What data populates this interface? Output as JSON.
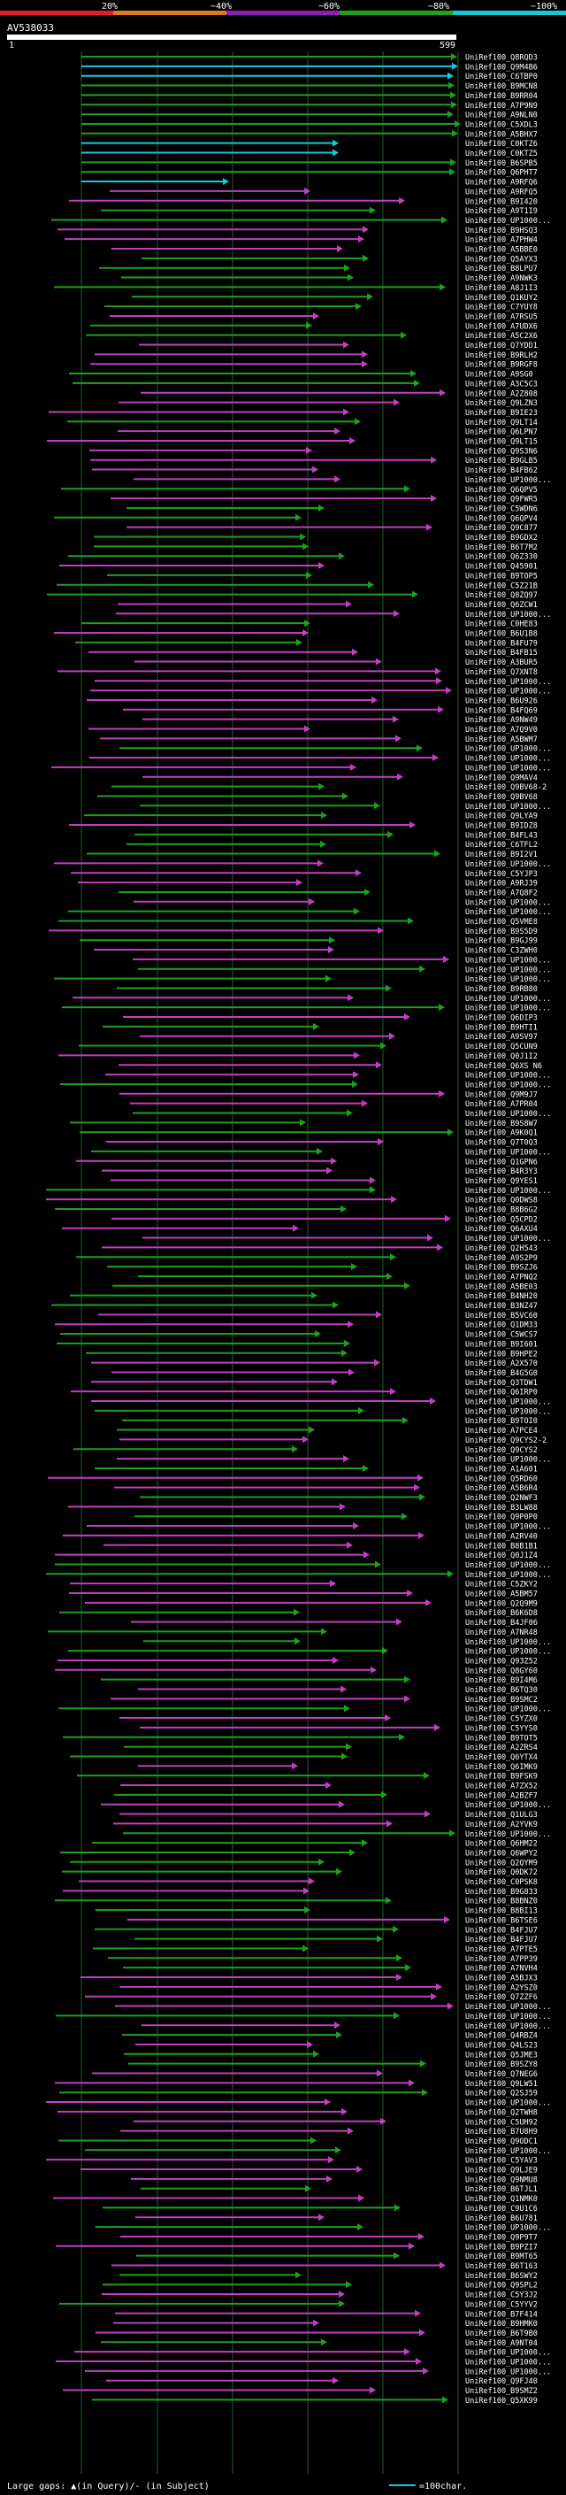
{
  "chart_data": {
    "type": "bar",
    "title": "AV538033",
    "query_start_label": "1",
    "query_end_label": "599",
    "xlim": [
      1,
      599
    ],
    "identity_scale": {
      "labels": [
        "20%",
        "~40%",
        "~60%",
        "~80%",
        "~100%"
      ],
      "colors": [
        "#e0202a",
        "#e07a1f",
        "#8d1fb8",
        "#1ea01e",
        "#19c8d8"
      ]
    },
    "bottom_legend": {
      "gaps_text": "Large gaps: ▲(in Query)/- (in Subject)",
      "scale_text": "=100char."
    },
    "hit_labels": [
      "UniRef100_Q8RQD3",
      "UniRef100_Q9M4B6",
      "UniRef100_C6TBP0",
      "UniRef100_B9MCN8",
      "UniRef100_B9RR04",
      "UniRef100_A7P9N9",
      "UniRef100_A9NLN0",
      "UniRef100_C5XDL3",
      "UniRef100_A5BHX7",
      "UniRef100_C0KTZ6",
      "UniRef100_C0KTZ5",
      "UniRef100_B6SPB5",
      "UniRef100_Q6PHT7",
      "UniRef100_A9RFQ6",
      "UniRef100_A9RFQ5",
      "UniRef100_B9I420",
      "UniRef100_A9T1I9",
      "UniRef100_UP1000...",
      "UniRef100_B9HSQ3",
      "UniRef100_A7PHW4",
      "UniRef100_A5BBE0",
      "UniRef100_Q5AYX3",
      "UniRef100_B8LPU7",
      "UniRef100_A9NWK3",
      "UniRef100_A8J1I3",
      "UniRef100_Q1KUY2",
      "UniRef100_C7YUY8",
      "UniRef100_A7RSU5",
      "UniRef100_A7UDX6",
      "UniRef100_A5C2X6",
      "UniRef100_Q7YDD1",
      "UniRef100_B9RLH2",
      "UniRef100_B9RGF8",
      "UniRef100_A9SG0",
      "UniRef100_A3C5C3",
      "UniRef100_A2Z808",
      "UniRef100_Q9LZN3",
      "UniRef100_B9IE23",
      "UniRef100_Q9LT14",
      "UniRef100_Q6LPN7",
      "UniRef100_Q9LT15",
      "UniRef100_Q9S3N6",
      "UniRef100_B9GLB5",
      "UniRef100_B4FB62",
      "UniRef100_UP1000...",
      "UniRef100_Q6QPV5",
      "UniRef100_Q9FWR5",
      "UniRef100_C5WDN6",
      "UniRef100_Q6QPV4",
      "UniRef100_Q9C877",
      "UniRef100_B9GDX2",
      "UniRef100_B6T7M2",
      "UniRef100_Q6Z330",
      "UniRef100_Q45901",
      "UniRef100_B9TOP5",
      "UniRef100_C5Z21B",
      "UniRef100_Q8ZQ97",
      "UniRef100_Q6ZCW1",
      "UniRef100_UP1000...",
      "UniRef100_C0HE83",
      "UniRef100_B6U1B8",
      "UniRef100_B4FU79",
      "UniRef100_B4FB15",
      "UniRef100_A3BUR5",
      "UniRef100_Q7XNT8",
      "UniRef100_UP1000...",
      "UniRef100_UP1000...",
      "UniRef100_B6U926",
      "UniRef100_B4FQ69",
      "UniRef100_A9NW49",
      "UniRef100_A7Q9V0",
      "UniRef100_A5BWM7",
      "UniRef100_UP1000...",
      "UniRef100_UP1000...",
      "UniRef100_UP1000...",
      "UniRef100_Q9MAV4",
      "UniRef100_Q9BV68-2",
      "UniRef100_Q9BV68",
      "UniRef100_UP1000...",
      "UniRef100_Q9LYA9",
      "UniRef100_B9IDZ8",
      "UniRef100_B4FL43",
      "UniRef100_C6TFL2",
      "UniRef100_B9I2V1",
      "UniRef100_UP1000...",
      "UniRef100_C5YJP3",
      "UniRef100_A9RJ39",
      "UniRef100_A7Q8F2",
      "UniRef100_UP1000...",
      "UniRef100_UP1000...",
      "UniRef100_Q5VME8",
      "UniRef100_B9S5D9",
      "UniRef100_B9GJ99",
      "UniRef100_C3ZWH0",
      "UniRef100_UP1000...",
      "UniRef100_UP1000...",
      "UniRef100_UP1000...",
      "UniRef100_B9RB80",
      "UniRef100_UP1000...",
      "UniRef100_UP1000...",
      "UniRef100_Q6DIP3",
      "UniRef100_B9HTI1",
      "UniRef100_A9SV97",
      "UniRef100_Q5CUN9",
      "UniRef100_Q0J1I2",
      "UniRef100_Q6XS N6",
      "UniRef100_UP1000...",
      "UniRef100_UP1000...",
      "UniRef100_Q9M9J7",
      "UniRef100_A7PR04",
      "UniRef100_UP1000...",
      "UniRef100_B9S8W7",
      "UniRef100_A9K0Q1",
      "UniRef100_Q7T0Q3",
      "UniRef100_UP1000...",
      "UniRef100_Q1GPN6",
      "UniRef100_B4R3Y3",
      "UniRef100_Q9YES1",
      "UniRef100_UP1000...",
      "UniRef100_Q0DWS8",
      "UniRef100_B8B6G2",
      "UniRef100_Q5CPD2",
      "UniRef100_Q6AXU4",
      "UniRef100_UP1000...",
      "UniRef100_Q2H543",
      "UniRef100_A9S2P9",
      "UniRef100_B9SZJ6",
      "UniRef100_A7PNQ2",
      "UniRef100_A5BE03",
      "UniRef100_B4NH20",
      "UniRef100_B3NZ47",
      "UniRef100_B5VC60",
      "UniRef100_Q1DM33",
      "UniRef100_C5WCS7",
      "UniRef100_B9I601",
      "UniRef100_B9HPE2",
      "UniRef100_A2X570",
      "UniRef100_B4G5G0",
      "UniRef100_Q3TDW1",
      "UniRef100_Q6IRP0",
      "UniRef100_UP1000...",
      "UniRef100_UP1000...",
      "UniRef100_B9TOI0",
      "UniRef100_A7PCE4",
      "UniRef100_Q9CYS2-2",
      "UniRef100_Q9CYS2",
      "UniRef100_UP1000...",
      "UniRef100_A1A601",
      "UniRef100_Q5RD60",
      "UniRef100_A5B6R4",
      "UniRef100_Q2NWF3",
      "UniRef100_B3LW88",
      "UniRef100_Q9P0P0",
      "UniRef100_UP1000...",
      "UniRef100_A2RV40",
      "UniRef100_B8B1B1",
      "UniRef100_Q0J1Z4",
      "UniRef100_UP1000...",
      "UniRef100_UP1000...",
      "UniRef100_C5ZKY2",
      "UniRef100_A5BM57",
      "UniRef100_Q2Q9M9",
      "UniRef100_B6K6D8",
      "UniRef100_B4JF06",
      "UniRef100_A7NR48",
      "UniRef100_UP1000...",
      "UniRef100_UP1000...",
      "UniRef100_Q93Z52",
      "UniRef100_Q8GY60",
      "UniRef100_B9I4M6",
      "UniRef100_B6TQ30",
      "UniRef100_B9SMC2",
      "UniRef100_UP1000...",
      "UniRef100_C5YZX0",
      "UniRef100_C5YYS0",
      "UniRef100_B9TOT5",
      "UniRef100_A2ZRS4",
      "UniRef100_Q6YTX4",
      "UniRef100_Q6IMK9",
      "UniRef100_B9FSK9",
      "UniRef100_A7ZX52",
      "UniRef100_A2BZF7",
      "UniRef100_UP1000...",
      "UniRef100_Q1ULG3",
      "UniRef100_A2YVK9",
      "UniRef100_UP1000...",
      "UniRef100_Q6HM22",
      "UniRef100_Q6WPY2",
      "UniRef100_Q2QYM9",
      "UniRef100_Q0DK72",
      "UniRef100_C0PSK8",
      "UniRef100_B9G833",
      "UniRef100_B8BNZ0",
      "UniRef100_B8BI13",
      "UniRef100_B6TSE6",
      "UniRef100_B4FJU7",
      "UniRef100_B4FJU7",
      "UniRef100_A7PTE5",
      "UniRef100_A7PP39",
      "UniRef100_A7NVH4",
      "UniRef100_A5BJX3",
      "UniRef100_A2YSZ0",
      "UniRef100_Q7ZZF6",
      "UniRef100_UP1000...",
      "UniRef100_UP1000...",
      "UniRef100_UP1000...",
      "UniRef100_Q4RBZ4",
      "UniRef100_Q4LS23",
      "UniRef100_Q5JME3",
      "UniRef100_B9SZY8",
      "UniRef100_Q7NEG6",
      "UniRef100_Q9LW51",
      "UniRef100_Q2SJ59",
      "UniRef100_UP1000...",
      "UniRef100_Q2TWH8",
      "UniRef100_C5UH92",
      "UniRef100_B7U8H9",
      "UniRef100_Q9ODC1",
      "UniRef100_UP1000...",
      "UniRef100_C5YAV3",
      "UniRef100_Q9LJE9",
      "UniRef100_Q9NMU8",
      "UniRef100_B6TJL1",
      "UniRef100_Q1NMK0",
      "UniRef100_C9U1C6",
      "UniRef100_B6U781",
      "UniRef100_UP1000...",
      "UniRef100_Q9P9T7",
      "UniRef100_B9PZI7",
      "UniRef100_B9MT65",
      "UniRef100_B6T163",
      "UniRef100_B6SWY2",
      "UniRef100_Q9SPL2",
      "UniRef100_C5Y3J2",
      "UniRef100_C5YYV2",
      "UniRef100_B7F414",
      "UniRef100_B9HMK0",
      "UniRef100_B6T9B0",
      "UniRef100_A9NT04",
      "UniRef100_UP1000...",
      "UniRef100_UP1000...",
      "UniRef100_UP1000...",
      "UniRef100_Q9FJ40",
      "UniRef100_B9SMZ2",
      "UniRef100_Q5XK99"
    ],
    "series": [
      {
        "name": "~100%",
        "color": "#19c8d8"
      },
      {
        "name": "~80%",
        "color": "#1ea01e"
      },
      {
        "name": "~60%",
        "color": "#8d1fb8"
      }
    ]
  }
}
